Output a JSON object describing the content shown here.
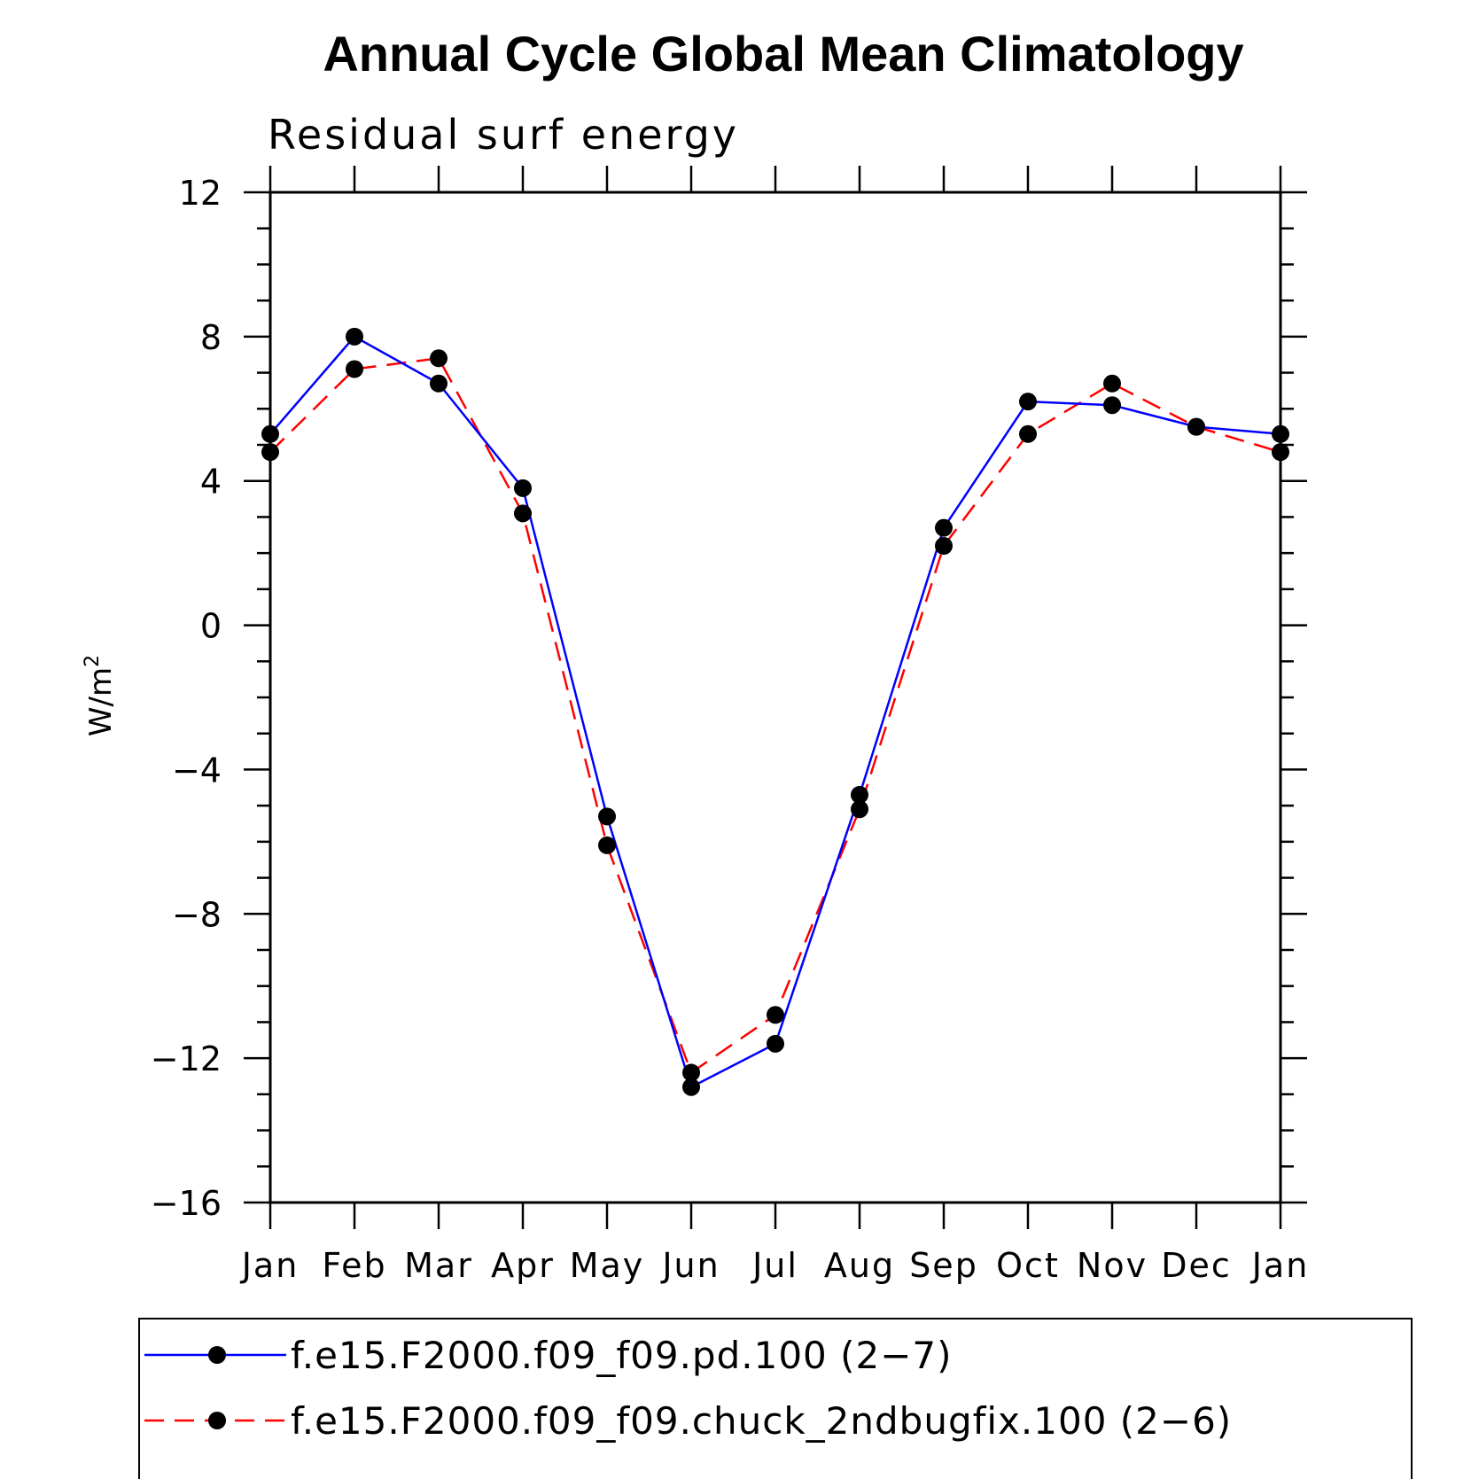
{
  "chart_data": {
    "type": "line",
    "title": "Annual Cycle Global Mean Climatology",
    "subtitle": "Residual surf energy",
    "ylabel": "W/m",
    "ylabel_superscript": "2",
    "ylim": [
      -16,
      12
    ],
    "yticks": [
      "12",
      "8",
      "4",
      "0",
      "−4",
      "−8",
      "−12",
      "−16"
    ],
    "ytick_values": [
      12,
      8,
      4,
      0,
      -4,
      -8,
      -12,
      -16
    ],
    "categories": [
      "Jan",
      "Feb",
      "Mar",
      "Apr",
      "May",
      "Jun",
      "Jul",
      "Aug",
      "Sep",
      "Oct",
      "Nov",
      "Dec",
      "Jan"
    ],
    "grid": false,
    "legend_position": "bottom",
    "series": [
      {
        "name": "f.e15.F2000.f09_f09.pd.100 (2−7)",
        "color": "#0000ff",
        "line_style": "solid",
        "marker": "filled-circle",
        "values": [
          5.3,
          8.0,
          6.7,
          3.8,
          -5.3,
          -12.8,
          -11.6,
          -4.7,
          2.7,
          6.2,
          6.1,
          5.5,
          5.3
        ]
      },
      {
        "name": "f.e15.F2000.f09_f09.chuck_2ndbugfix.100 (2−6)",
        "color": "#ff0000",
        "line_style": "dashed",
        "marker": "filled-circle",
        "values": [
          4.8,
          7.1,
          7.4,
          3.1,
          -6.1,
          -12.4,
          -10.8,
          -5.1,
          2.2,
          5.3,
          6.7,
          5.5,
          4.8
        ]
      }
    ]
  }
}
